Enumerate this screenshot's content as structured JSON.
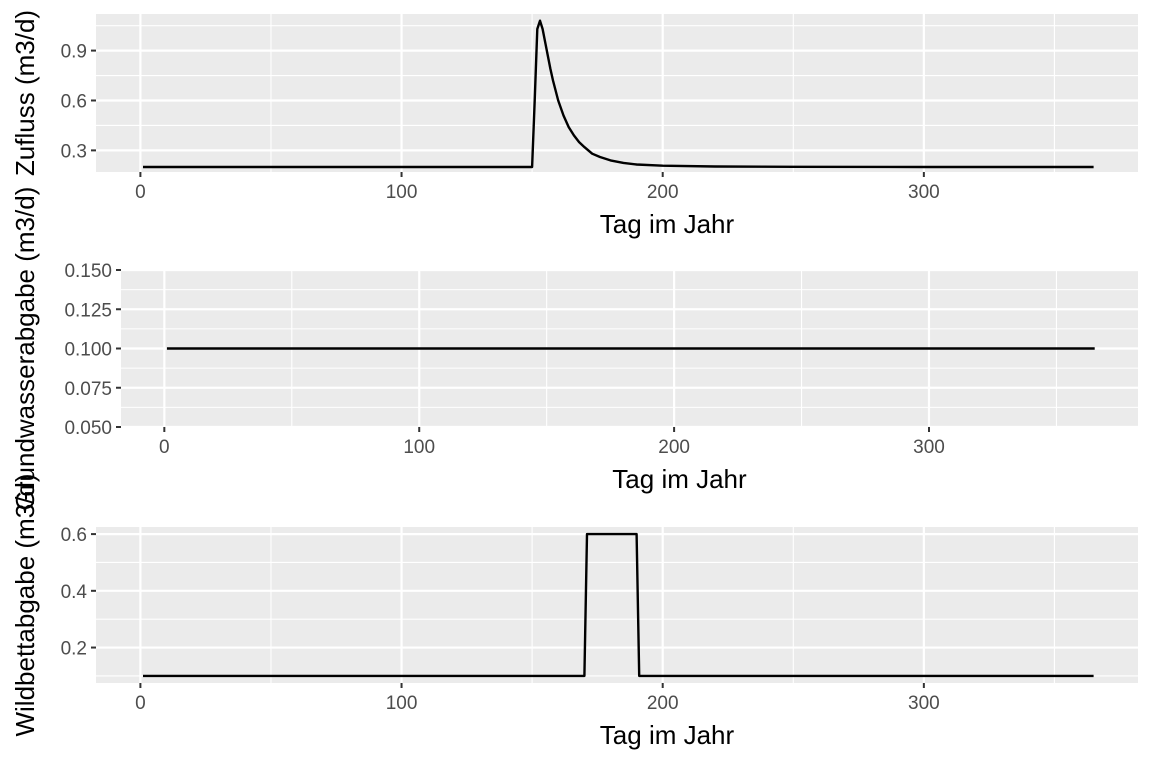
{
  "chart_data": [
    {
      "type": "line",
      "xlabel": "Tag im Jahr",
      "ylabel": "Zufluss (m3/d)",
      "xlim": [
        -17,
        382
      ],
      "ylim": [
        0.17,
        1.12
      ],
      "xticks": [
        0,
        100,
        200,
        300
      ],
      "xtick_labels": [
        "0",
        "100",
        "200",
        "300"
      ],
      "yticks": [
        0.3,
        0.6,
        0.9
      ],
      "ytick_labels": [
        "0.3",
        "0.6",
        "0.9"
      ],
      "grid": true,
      "series": [
        {
          "x": [
            1,
            150,
            151,
            152,
            153,
            154,
            155,
            156,
            157,
            158,
            160,
            162,
            164,
            166,
            168,
            170,
            173,
            176,
            180,
            185,
            190,
            200,
            220,
            250,
            300,
            365
          ],
          "values": [
            0.2,
            0.2,
            0.6,
            1.03,
            1.08,
            1.03,
            0.95,
            0.87,
            0.79,
            0.72,
            0.6,
            0.51,
            0.44,
            0.39,
            0.35,
            0.32,
            0.28,
            0.26,
            0.24,
            0.225,
            0.215,
            0.208,
            0.203,
            0.201,
            0.2,
            0.2
          ]
        }
      ]
    },
    {
      "type": "line",
      "xlabel": "Tag im Jahr",
      "ylabel": "Grundwasserabgabe (m3/d)",
      "xlim": [
        -17,
        382
      ],
      "ylim": [
        0.05,
        0.15
      ],
      "xticks": [
        0,
        100,
        200,
        300
      ],
      "xtick_labels": [
        "0",
        "100",
        "200",
        "300"
      ],
      "yticks": [
        0.05,
        0.075,
        0.1,
        0.125,
        0.15
      ],
      "ytick_labels": [
        "0.050",
        "0.075",
        "0.100",
        "0.125",
        "0.150"
      ],
      "grid": true,
      "series": [
        {
          "x": [
            1,
            365
          ],
          "values": [
            0.1,
            0.1
          ]
        }
      ]
    },
    {
      "type": "line",
      "xlabel": "Tag im Jahr",
      "ylabel": "Wildbettabgabe (m3/d)",
      "xlim": [
        -17,
        382
      ],
      "ylim": [
        0.075,
        0.625
      ],
      "xticks": [
        0,
        100,
        200,
        300
      ],
      "xtick_labels": [
        "0",
        "100",
        "200",
        "300"
      ],
      "yticks": [
        0.2,
        0.4,
        0.6
      ],
      "ytick_labels": [
        "0.2",
        "0.4",
        "0.6"
      ],
      "grid": true,
      "series": [
        {
          "x": [
            1,
            170,
            171,
            190,
            191,
            365
          ],
          "values": [
            0.1,
            0.1,
            0.6,
            0.6,
            0.1,
            0.1
          ]
        }
      ]
    }
  ]
}
